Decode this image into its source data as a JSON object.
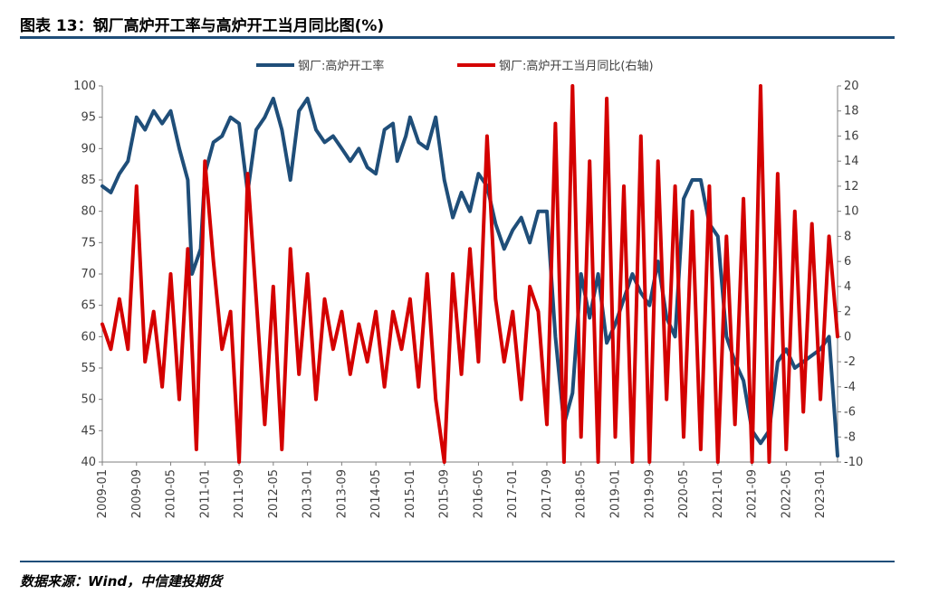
{
  "figure": {
    "title": "图表 13：钢厂高炉开工率与高炉开工当月同比图(%)",
    "source": "数据来源：Wind，中信建投期货"
  },
  "colors": {
    "series1": "#1f4e79",
    "series2": "#d40000",
    "rule": "#1f4e79"
  },
  "chart_data": {
    "type": "line",
    "title": "",
    "legend_position": "top",
    "grid": false,
    "x_ticks": [
      "2009-01",
      "2009-09",
      "2010-05",
      "2011-01",
      "2011-09",
      "2012-05",
      "2013-01",
      "2013-09",
      "2014-05",
      "2015-01",
      "2015-09",
      "2016-05",
      "2017-01",
      "2017-09",
      "2018-05",
      "2019-01",
      "2019-09",
      "2020-05",
      "2021-01",
      "2021-09",
      "2022-05",
      "2023-01"
    ],
    "x_range": [
      "2009-01",
      "2023-05"
    ],
    "y_left": {
      "range": [
        40,
        100
      ],
      "ticks": [
        100,
        95,
        90,
        85,
        80,
        75,
        70,
        65,
        60,
        55,
        50,
        45,
        40
      ]
    },
    "y_right": {
      "range": [
        -10,
        20
      ],
      "ticks": [
        20,
        18,
        16,
        14,
        12,
        10,
        8,
        6,
        4,
        2,
        0,
        -2,
        -4,
        -6,
        -8,
        -10
      ]
    },
    "series": [
      {
        "name": "钢厂:高炉开工率",
        "axis": "left",
        "points": [
          [
            "2009-01",
            84
          ],
          [
            "2009-03",
            83
          ],
          [
            "2009-05",
            86
          ],
          [
            "2009-07",
            88
          ],
          [
            "2009-09",
            95
          ],
          [
            "2009-11",
            93
          ],
          [
            "2010-01",
            96
          ],
          [
            "2010-03",
            94
          ],
          [
            "2010-05",
            96
          ],
          [
            "2010-07",
            90
          ],
          [
            "2010-09",
            85
          ],
          [
            "2010-10",
            70
          ],
          [
            "2010-12",
            74
          ],
          [
            "2011-01",
            86
          ],
          [
            "2011-03",
            91
          ],
          [
            "2011-05",
            92
          ],
          [
            "2011-07",
            95
          ],
          [
            "2011-09",
            94
          ],
          [
            "2011-11",
            83
          ],
          [
            "2012-01",
            93
          ],
          [
            "2012-03",
            95
          ],
          [
            "2012-05",
            98
          ],
          [
            "2012-07",
            93
          ],
          [
            "2012-09",
            85
          ],
          [
            "2012-11",
            96
          ],
          [
            "2013-01",
            98
          ],
          [
            "2013-03",
            93
          ],
          [
            "2013-05",
            91
          ],
          [
            "2013-07",
            92
          ],
          [
            "2013-09",
            90
          ],
          [
            "2013-11",
            88
          ],
          [
            "2014-01",
            90
          ],
          [
            "2014-03",
            87
          ],
          [
            "2014-05",
            86
          ],
          [
            "2014-07",
            93
          ],
          [
            "2014-09",
            94
          ],
          [
            "2014-10",
            88
          ],
          [
            "2014-12",
            92
          ],
          [
            "2015-01",
            95
          ],
          [
            "2015-03",
            91
          ],
          [
            "2015-05",
            90
          ],
          [
            "2015-07",
            95
          ],
          [
            "2015-09",
            85
          ],
          [
            "2015-11",
            79
          ],
          [
            "2016-01",
            83
          ],
          [
            "2016-03",
            80
          ],
          [
            "2016-05",
            86
          ],
          [
            "2016-07",
            84
          ],
          [
            "2016-09",
            78
          ],
          [
            "2016-11",
            74
          ],
          [
            "2017-01",
            77
          ],
          [
            "2017-03",
            79
          ],
          [
            "2017-05",
            75
          ],
          [
            "2017-07",
            80
          ],
          [
            "2017-09",
            80
          ],
          [
            "2017-11",
            60
          ],
          [
            "2018-01",
            46
          ],
          [
            "2018-03",
            51
          ],
          [
            "2018-05",
            70
          ],
          [
            "2018-07",
            63
          ],
          [
            "2018-09",
            70
          ],
          [
            "2018-11",
            59
          ],
          [
            "2019-01",
            62
          ],
          [
            "2019-03",
            66
          ],
          [
            "2019-05",
            70
          ],
          [
            "2019-07",
            67
          ],
          [
            "2019-09",
            65
          ],
          [
            "2019-11",
            72
          ],
          [
            "2020-01",
            63
          ],
          [
            "2020-03",
            60
          ],
          [
            "2020-05",
            82
          ],
          [
            "2020-07",
            85
          ],
          [
            "2020-09",
            85
          ],
          [
            "2020-11",
            78
          ],
          [
            "2021-01",
            76
          ],
          [
            "2021-03",
            60
          ],
          [
            "2021-05",
            56
          ],
          [
            "2021-07",
            53
          ],
          [
            "2021-09",
            45
          ],
          [
            "2021-11",
            43
          ],
          [
            "2022-01",
            45
          ],
          [
            "2022-03",
            56
          ],
          [
            "2022-05",
            58
          ],
          [
            "2022-07",
            55
          ],
          [
            "2022-09",
            56
          ],
          [
            "2022-11",
            57
          ],
          [
            "2023-01",
            58
          ],
          [
            "2023-03",
            60
          ],
          [
            "2023-05",
            41
          ]
        ]
      },
      {
        "name": "钢厂:高炉开工当月同比(右轴)",
        "axis": "right",
        "points": [
          [
            "2009-01",
            1
          ],
          [
            "2009-03",
            -1
          ],
          [
            "2009-05",
            3
          ],
          [
            "2009-07",
            -1
          ],
          [
            "2009-09",
            12
          ],
          [
            "2009-11",
            -2
          ],
          [
            "2010-01",
            2
          ],
          [
            "2010-03",
            -4
          ],
          [
            "2010-05",
            5
          ],
          [
            "2010-07",
            -5
          ],
          [
            "2010-09",
            7
          ],
          [
            "2010-11",
            -9
          ],
          [
            "2011-01",
            14
          ],
          [
            "2011-03",
            6
          ],
          [
            "2011-05",
            -1
          ],
          [
            "2011-07",
            2
          ],
          [
            "2011-09",
            -10
          ],
          [
            "2011-11",
            13
          ],
          [
            "2012-01",
            3
          ],
          [
            "2012-03",
            -7
          ],
          [
            "2012-05",
            4
          ],
          [
            "2012-07",
            -9
          ],
          [
            "2012-09",
            7
          ],
          [
            "2012-11",
            -3
          ],
          [
            "2013-01",
            5
          ],
          [
            "2013-03",
            -5
          ],
          [
            "2013-05",
            3
          ],
          [
            "2013-07",
            -1
          ],
          [
            "2013-09",
            2
          ],
          [
            "2013-11",
            -3
          ],
          [
            "2014-01",
            1
          ],
          [
            "2014-03",
            -2
          ],
          [
            "2014-05",
            2
          ],
          [
            "2014-07",
            -4
          ],
          [
            "2014-09",
            2
          ],
          [
            "2014-11",
            -1
          ],
          [
            "2015-01",
            3
          ],
          [
            "2015-03",
            -4
          ],
          [
            "2015-05",
            5
          ],
          [
            "2015-07",
            -5
          ],
          [
            "2015-09",
            -10
          ],
          [
            "2015-11",
            5
          ],
          [
            "2016-01",
            -3
          ],
          [
            "2016-03",
            7
          ],
          [
            "2016-05",
            -2
          ],
          [
            "2016-07",
            16
          ],
          [
            "2016-09",
            3
          ],
          [
            "2016-11",
            -2
          ],
          [
            "2017-01",
            2
          ],
          [
            "2017-03",
            -5
          ],
          [
            "2017-05",
            4
          ],
          [
            "2017-07",
            2
          ],
          [
            "2017-09",
            -7
          ],
          [
            "2017-11",
            17
          ],
          [
            "2018-01",
            -10
          ],
          [
            "2018-03",
            20
          ],
          [
            "2018-05",
            -8
          ],
          [
            "2018-07",
            14
          ],
          [
            "2018-09",
            -10
          ],
          [
            "2018-11",
            19
          ],
          [
            "2019-01",
            -8
          ],
          [
            "2019-03",
            12
          ],
          [
            "2019-05",
            -10
          ],
          [
            "2019-07",
            16
          ],
          [
            "2019-09",
            -10
          ],
          [
            "2019-11",
            14
          ],
          [
            "2020-01",
            -5
          ],
          [
            "2020-03",
            12
          ],
          [
            "2020-05",
            -8
          ],
          [
            "2020-07",
            10
          ],
          [
            "2020-09",
            -9
          ],
          [
            "2020-11",
            12
          ],
          [
            "2021-01",
            -10
          ],
          [
            "2021-03",
            8
          ],
          [
            "2021-05",
            -7
          ],
          [
            "2021-07",
            11
          ],
          [
            "2021-09",
            -10
          ],
          [
            "2021-11",
            20
          ],
          [
            "2022-01",
            -10
          ],
          [
            "2022-03",
            13
          ],
          [
            "2022-05",
            -9
          ],
          [
            "2022-07",
            10
          ],
          [
            "2022-09",
            -6
          ],
          [
            "2022-11",
            9
          ],
          [
            "2023-01",
            -5
          ],
          [
            "2023-03",
            8
          ],
          [
            "2023-05",
            0
          ]
        ]
      }
    ]
  }
}
